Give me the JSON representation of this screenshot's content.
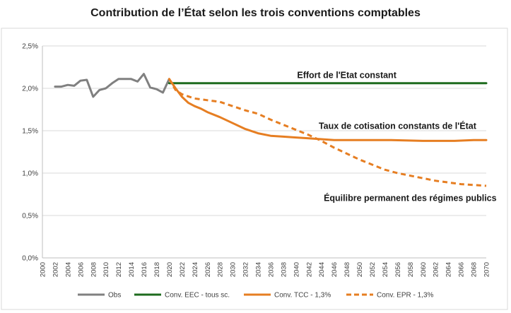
{
  "chart_data": {
    "type": "line",
    "title": "Contribution de l’État selon les trois conventions comptables",
    "xlabel": "",
    "ylabel": "",
    "xlim": [
      2000,
      2070
    ],
    "ylim": [
      0,
      2.5
    ],
    "grid": true,
    "legend_position": "bottom",
    "y_ticks": [
      "0,0%",
      "0,5%",
      "1,0%",
      "1,5%",
      "2,0%",
      "2,5%"
    ],
    "x_ticks": [
      "2000",
      "2002",
      "2004",
      "2006",
      "2008",
      "2010",
      "2012",
      "2014",
      "2016",
      "2018",
      "2020",
      "2022",
      "2024",
      "2026",
      "2028",
      "2030",
      "2032",
      "2034",
      "2036",
      "2038",
      "2040",
      "2042",
      "2044",
      "2046",
      "2048",
      "2050",
      "2052",
      "2054",
      "2056",
      "2058",
      "2060",
      "2062",
      "2064",
      "2066",
      "2068",
      "2070"
    ],
    "annotations": [
      {
        "text": "Effort de l'Etat constant",
        "x": 2048,
        "y": 2.12
      },
      {
        "text": "Taux de cotisation constants de l'État",
        "x": 2056,
        "y": 1.52
      },
      {
        "text": "Équilibre permanent des régimes publics",
        "x": 2058,
        "y": 0.67
      }
    ],
    "series": [
      {
        "name": "Obs",
        "color": "#808080",
        "dash": "solid",
        "x": [
          2002,
          2003,
          2004,
          2005,
          2006,
          2007,
          2008,
          2009,
          2010,
          2011,
          2012,
          2013,
          2014,
          2015,
          2016,
          2017,
          2018,
          2019,
          2020
        ],
        "values": [
          2.02,
          2.02,
          2.04,
          2.03,
          2.09,
          2.1,
          1.9,
          1.98,
          2.0,
          2.06,
          2.11,
          2.11,
          2.11,
          2.08,
          2.17,
          2.01,
          1.99,
          1.95,
          2.11
        ]
      },
      {
        "name": "Conv. EEC - tous sc.",
        "color": "#1e6b1e",
        "dash": "solid",
        "x": [
          2020,
          2070
        ],
        "values": [
          2.06,
          2.06
        ]
      },
      {
        "name": "Conv. TCC - 1,3%",
        "color": "#e67e22",
        "dash": "solid",
        "x": [
          2020,
          2021,
          2022,
          2023,
          2024,
          2025,
          2026,
          2028,
          2030,
          2032,
          2034,
          2036,
          2038,
          2040,
          2042,
          2044,
          2046,
          2048,
          2050,
          2055,
          2060,
          2065,
          2068,
          2070
        ],
        "values": [
          2.11,
          2.0,
          1.9,
          1.83,
          1.79,
          1.76,
          1.72,
          1.66,
          1.59,
          1.52,
          1.47,
          1.44,
          1.43,
          1.42,
          1.41,
          1.4,
          1.39,
          1.39,
          1.39,
          1.39,
          1.38,
          1.38,
          1.39,
          1.39
        ]
      },
      {
        "name": "Conv. EPR - 1,3%",
        "color": "#e67e22",
        "dash": "dashed",
        "x": [
          2020,
          2021,
          2022,
          2024,
          2026,
          2028,
          2030,
          2032,
          2034,
          2036,
          2038,
          2040,
          2042,
          2044,
          2046,
          2048,
          2050,
          2052,
          2054,
          2056,
          2058,
          2060,
          2062,
          2064,
          2066,
          2068,
          2070
        ],
        "values": [
          2.11,
          1.98,
          1.93,
          1.88,
          1.86,
          1.84,
          1.79,
          1.74,
          1.7,
          1.63,
          1.57,
          1.51,
          1.45,
          1.38,
          1.3,
          1.23,
          1.16,
          1.1,
          1.04,
          1.0,
          0.97,
          0.94,
          0.91,
          0.89,
          0.87,
          0.86,
          0.85
        ]
      }
    ]
  }
}
